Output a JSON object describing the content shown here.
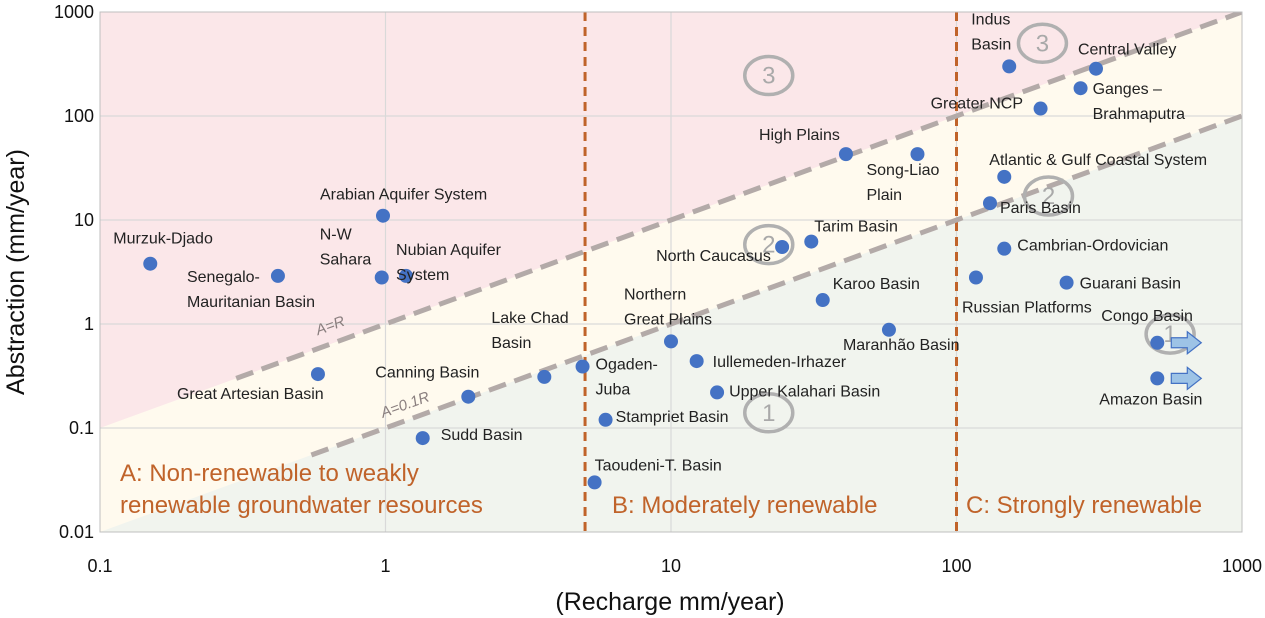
{
  "chart_data": {
    "type": "scatter",
    "scale": "log-log",
    "xlabel": "(Recharge mm/year)",
    "ylabel": "Abstraction (mm/year)",
    "xlim": [
      0.1,
      1000
    ],
    "ylim": [
      0.01,
      1000
    ],
    "x_ticks": [
      "0.1",
      "1",
      "10",
      "100",
      "1000"
    ],
    "y_ticks": [
      "0.01",
      "0.1",
      "1",
      "10",
      "100",
      "1000"
    ],
    "grid": true,
    "zone_boundaries_x": [
      5,
      100
    ],
    "zones": [
      {
        "id": "A",
        "lines": [
          "A: Non-renewable to weakly",
          "renewable groundwater resources"
        ]
      },
      {
        "id": "B",
        "lines": [
          "B: Moderately renewable"
        ]
      },
      {
        "id": "C",
        "lines": [
          "C: Strongly renewable"
        ]
      }
    ],
    "reference_lines": [
      {
        "name": "A=R",
        "factor": 1,
        "x_range": [
          0.3,
          1000
        ]
      },
      {
        "name": "A=0.1R",
        "factor": 0.1,
        "x_range": [
          0.55,
          1000
        ]
      }
    ],
    "categories": [
      {
        "label": "1",
        "position": [
          22,
          0.14
        ]
      },
      {
        "label": "2",
        "position": [
          22,
          5.8
        ]
      },
      {
        "label": "3",
        "position": [
          22,
          245
        ]
      },
      {
        "label": "1",
        "position": [
          560,
          0.8
        ]
      },
      {
        "label": "2",
        "position": [
          210,
          17
        ]
      },
      {
        "label": "3",
        "position": [
          200,
          500
        ]
      }
    ],
    "colors": {
      "point": "#4472c4",
      "zone_red": "#fbe7e9",
      "zone_cream": "#fffaee",
      "zone_green": "#f1f4ee",
      "divider": "#c0632a",
      "ref_line": "#b3aaa8",
      "arrow": "#9dc3e6"
    },
    "points": [
      {
        "name": "Murzuk-Djado",
        "label_lines": [
          "Murzuk-Djado"
        ],
        "x": 0.15,
        "y": 3.8
      },
      {
        "name": "Senegalo-Mauritanian Basin",
        "label_lines": [
          "Senegalo-",
          "Mauritanian Basin"
        ],
        "x": 0.42,
        "y": 2.9
      },
      {
        "name": "Great Artesian Basin",
        "label_lines": [
          "Great Artesian Basin"
        ],
        "x": 0.58,
        "y": 0.33
      },
      {
        "name": "Arabian Aquifer System",
        "label_lines": [
          "Arabian Aquifer System"
        ],
        "x": 0.98,
        "y": 11
      },
      {
        "name": "N-W Sahara",
        "label_lines": [
          "N-W",
          "Sahara"
        ],
        "x": 0.97,
        "y": 2.8
      },
      {
        "name": "Nubian Aquifer System",
        "label_lines": [
          "Nubian Aquifer",
          "System"
        ],
        "x": 1.18,
        "y": 2.9
      },
      {
        "name": "Canning Basin",
        "label_lines": [
          "Canning Basin"
        ],
        "x": 1.95,
        "y": 0.2
      },
      {
        "name": "Sudd Basin",
        "label_lines": [
          "Sudd Basin"
        ],
        "x": 1.35,
        "y": 0.08
      },
      {
        "name": "Lake Chad Basin",
        "label_lines": [
          "Lake Chad",
          "Basin"
        ],
        "x": 3.6,
        "y": 0.31
      },
      {
        "name": "Ogaden-Juba",
        "label_lines": [
          "Ogaden-",
          "Juba"
        ],
        "x": 4.9,
        "y": 0.39
      },
      {
        "name": "Taoudeni-T. Basin",
        "label_lines": [
          "Taoudeni-T. Basin"
        ],
        "x": 5.4,
        "y": 0.03
      },
      {
        "name": "Stampriet Basin",
        "label_lines": [
          "Stampriet Basin"
        ],
        "x": 5.9,
        "y": 0.12
      },
      {
        "name": "Northern Great Plains",
        "label_lines": [
          "Northern",
          "Great Plains"
        ],
        "x": 10,
        "y": 0.68
      },
      {
        "name": "Iullemeden-Irhazer",
        "label_lines": [
          "Iullemeden-Irhazer"
        ],
        "x": 12.3,
        "y": 0.44
      },
      {
        "name": "Upper Kalahari Basin",
        "label_lines": [
          "Upper Kalahari Basin"
        ],
        "x": 14.5,
        "y": 0.22
      },
      {
        "name": "North Caucasus",
        "label_lines": [
          "North Caucasus"
        ],
        "x": 24.5,
        "y": 5.5
      },
      {
        "name": "Tarim Basin",
        "label_lines": [
          "Tarim Basin"
        ],
        "x": 31,
        "y": 6.2
      },
      {
        "name": "Karoo Basin",
        "label_lines": [
          "Karoo Basin"
        ],
        "x": 34,
        "y": 1.7
      },
      {
        "name": "High Plains",
        "label_lines": [
          "High Plains"
        ],
        "x": 41,
        "y": 43
      },
      {
        "name": "Maranhão Basin",
        "label_lines": [
          "Maranhão Basin"
        ],
        "x": 58,
        "y": 0.88
      },
      {
        "name": "Song-Liao Plain",
        "label_lines": [
          "Song-Liao",
          "Plain"
        ],
        "x": 73,
        "y": 43
      },
      {
        "name": "Russian Platforms",
        "label_lines": [
          "Russian Platforms"
        ],
        "x": 117,
        "y": 2.8
      },
      {
        "name": "Paris Basin",
        "label_lines": [
          "Paris Basin"
        ],
        "x": 131,
        "y": 14.5
      },
      {
        "name": "Atlantic & Gulf Coastal System",
        "label_lines": [
          "Atlantic & Gulf Coastal System"
        ],
        "x": 147,
        "y": 26
      },
      {
        "name": "Cambrian-Ordovician",
        "label_lines": [
          "Cambrian-Ordovician"
        ],
        "x": 147,
        "y": 5.3
      },
      {
        "name": "Indus Basin",
        "label_lines": [
          "Indus",
          "Basin"
        ],
        "x": 153,
        "y": 300
      },
      {
        "name": "Greater NCP",
        "label_lines": [
          "Greater NCP"
        ],
        "x": 197,
        "y": 118
      },
      {
        "name": "Guarani Basin",
        "label_lines": [
          "Guarani Basin"
        ],
        "x": 243,
        "y": 2.5
      },
      {
        "name": "Ganges – Brahmaputra",
        "label_lines": [
          "Ganges –",
          "Brahmaputra"
        ],
        "x": 272,
        "y": 185
      },
      {
        "name": "Central Valley",
        "label_lines": [
          "Central Valley"
        ],
        "x": 308,
        "y": 285
      },
      {
        "name": "Congo Basin",
        "label_lines": [
          "Congo Basin"
        ],
        "x": 505,
        "y": 0.66,
        "arrow": true
      },
      {
        "name": "Amazon Basin",
        "label_lines": [
          "Amazon Basin"
        ],
        "x": 505,
        "y": 0.3,
        "arrow": true
      }
    ]
  }
}
